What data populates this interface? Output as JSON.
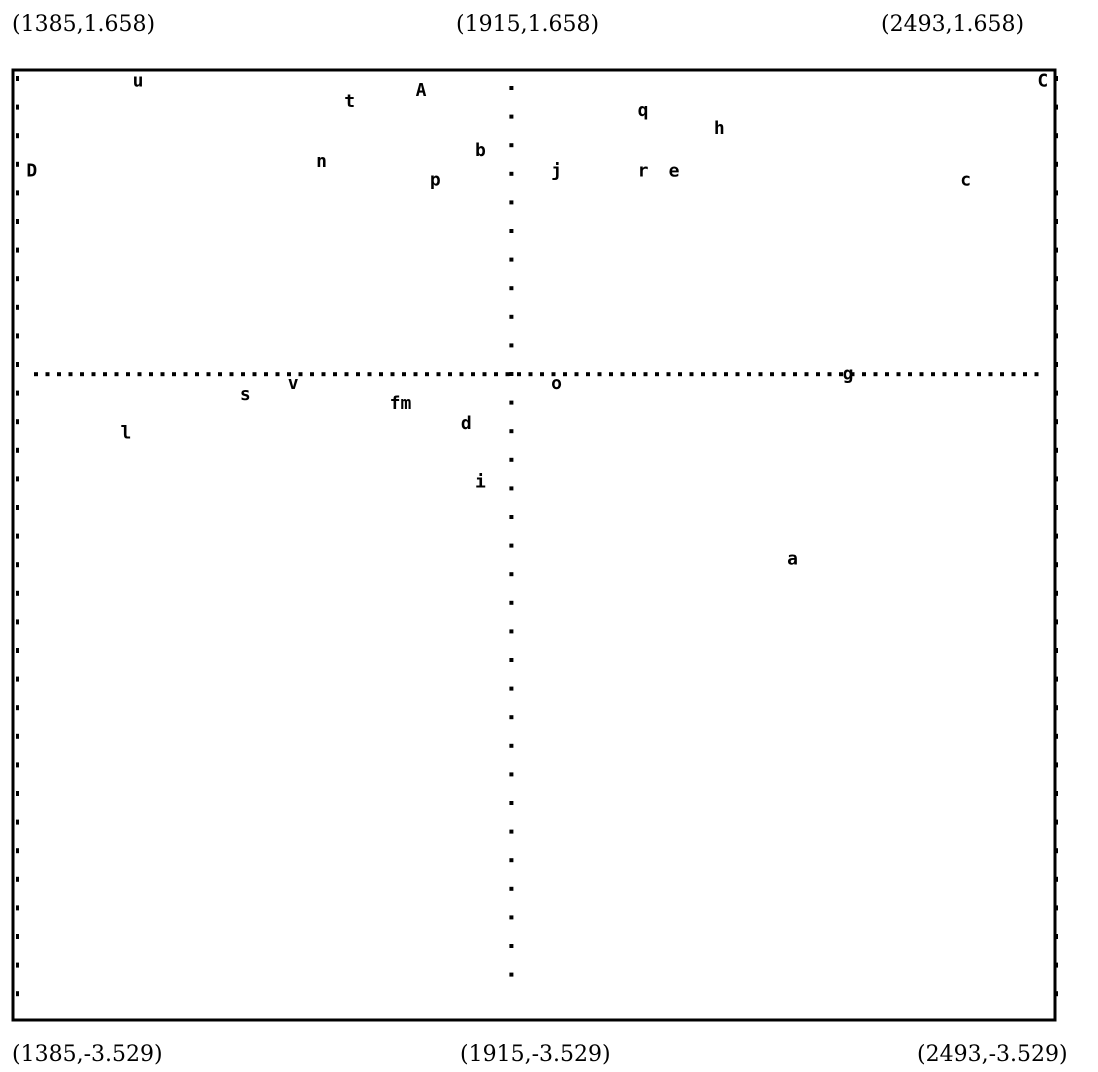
{
  "chart_data": {
    "type": "scatter",
    "title": "",
    "xlabel": "",
    "ylabel": "",
    "xlim": [
      1385,
      2493
    ],
    "ylim": [
      -3.529,
      1.658
    ],
    "grid": false,
    "legend": "none",
    "corner_labels": {
      "top_left": "(1385,1.658)",
      "top_center": "(1915,1.658)",
      "top_right": "(2493,1.658)",
      "bottom_left": "(1385,-3.529)",
      "bottom_center": "(1915,-3.529)",
      "bottom_right": "(2493,-3.529)"
    },
    "reference_lines": {
      "x": 1915,
      "y": 0
    },
    "points": [
      {
        "label": "u",
        "x": 1518,
        "y": 1.6
      },
      {
        "label": "A",
        "x": 1819,
        "y": 1.55
      },
      {
        "label": "C",
        "x": 2480,
        "y": 1.6
      },
      {
        "label": "t",
        "x": 1743,
        "y": 1.49
      },
      {
        "label": "q",
        "x": 2055,
        "y": 1.44
      },
      {
        "label": "h",
        "x": 2136,
        "y": 1.34
      },
      {
        "label": "b",
        "x": 1882,
        "y": 1.22
      },
      {
        "label": "n",
        "x": 1713,
        "y": 1.16
      },
      {
        "label": "D",
        "x": 1405,
        "y": 1.11
      },
      {
        "label": "j",
        "x": 1963,
        "y": 1.11
      },
      {
        "label": "r",
        "x": 2055,
        "y": 1.11
      },
      {
        "label": "e",
        "x": 2088,
        "y": 1.11
      },
      {
        "label": "p",
        "x": 1834,
        "y": 1.06
      },
      {
        "label": "c",
        "x": 2398,
        "y": 1.06
      },
      {
        "label": "g",
        "x": 2273,
        "y": 0.0
      },
      {
        "label": "v",
        "x": 1683,
        "y": -0.05
      },
      {
        "label": "o",
        "x": 1963,
        "y": -0.05
      },
      {
        "label": "s",
        "x": 1632,
        "y": -0.11
      },
      {
        "label": "fm",
        "x": 1797,
        "y": -0.16
      },
      {
        "label": "d",
        "x": 1867,
        "y": -0.27
      },
      {
        "label": "l",
        "x": 1505,
        "y": -0.32
      },
      {
        "label": "i",
        "x": 1882,
        "y": -0.59
      },
      {
        "label": "a",
        "x": 2214,
        "y": -1.01
      }
    ]
  }
}
